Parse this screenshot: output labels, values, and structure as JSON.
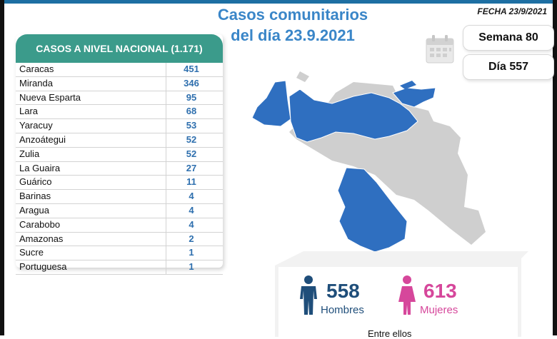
{
  "header": {
    "title_line1": "Casos comunitarios",
    "title_line2": "del día 23.9.2021",
    "fecha": "FECHA 23/9/2021"
  },
  "national": {
    "heading": "CASOS A NIVEL NACIONAL (1.171)",
    "rows": [
      {
        "name": "Caracas",
        "value": "451"
      },
      {
        "name": "Miranda",
        "value": "346"
      },
      {
        "name": "Nueva Esparta",
        "value": "95"
      },
      {
        "name": "Lara",
        "value": "68"
      },
      {
        "name": "Yaracuy",
        "value": "53"
      },
      {
        "name": "Anzoátegui",
        "value": "52"
      },
      {
        "name": "Zulia",
        "value": "52"
      },
      {
        "name": "La Guaira",
        "value": "27"
      },
      {
        "name": "Guárico",
        "value": "11"
      },
      {
        "name": "Barinas",
        "value": "4"
      },
      {
        "name": "Aragua",
        "value": "4"
      },
      {
        "name": "Carabobo",
        "value": "4"
      },
      {
        "name": "Amazonas",
        "value": "2"
      },
      {
        "name": "Sucre",
        "value": "1"
      },
      {
        "name": "Portuguesa",
        "value": "1"
      }
    ]
  },
  "week": {
    "label": "Semana 80"
  },
  "day": {
    "label": "Día 557"
  },
  "gender": {
    "men_count": "558",
    "men_label": "Hombres",
    "women_count": "613",
    "women_label": "Mujeres",
    "footer_text": "Entre ellos"
  },
  "colors": {
    "title": "#3a86c8",
    "header_bar": "#3b9b8b",
    "value_blue": "#2e6fae",
    "map_highlight": "#2f6fc0",
    "map_base": "#cfcfcf",
    "men": "#1f4e7a",
    "women": "#d6479b"
  },
  "icons": {
    "calendar": "calendar-icon",
    "men": "man-icon",
    "women": "woman-icon"
  }
}
